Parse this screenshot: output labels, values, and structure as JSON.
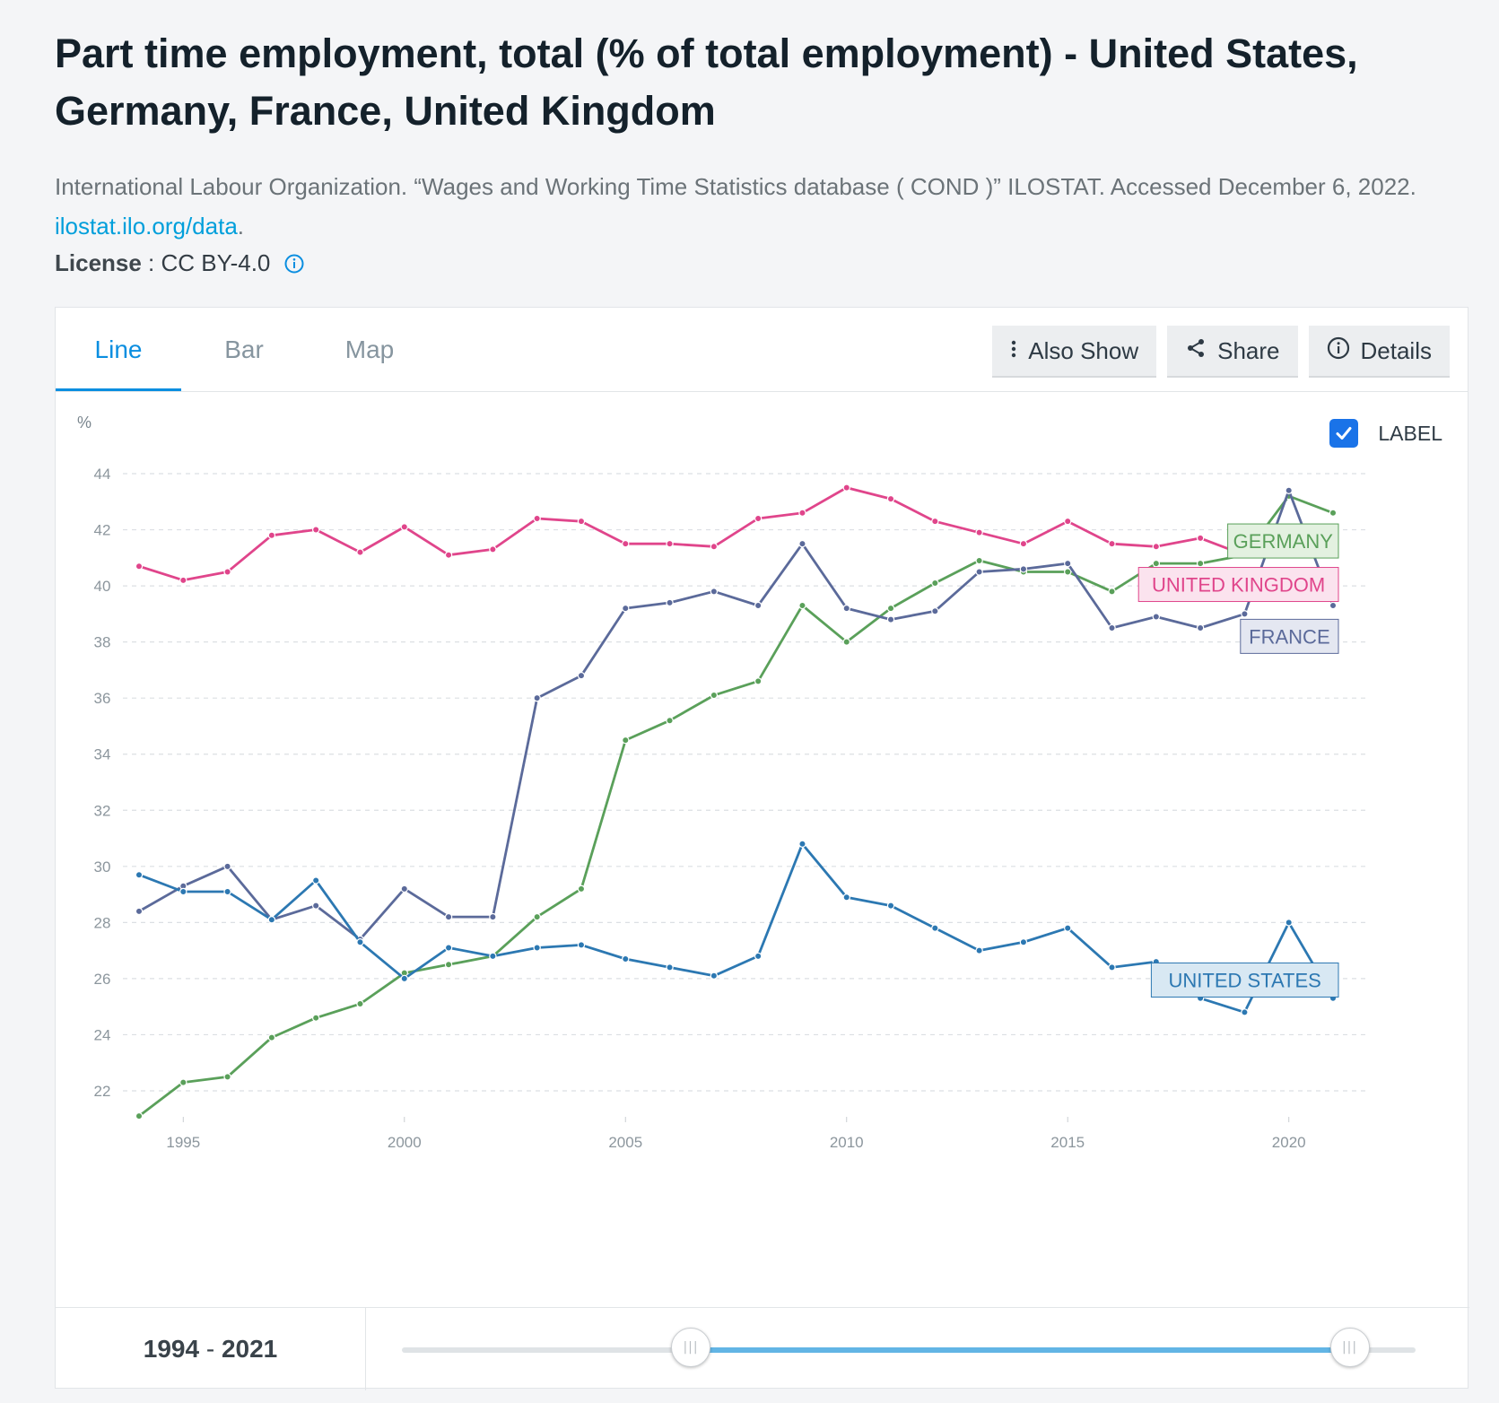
{
  "page": {
    "title": "Part time employment, total (% of total employment) - United States, Germany, France, United Kingdom",
    "source_text": "International Labour Organization. “Wages and Working Time Statistics database ( COND )” ILOSTAT. Accessed December 6, 2022.",
    "source_link": "ilostat.ilo.org/data",
    "source_link_suffix": ".",
    "license_label": "License",
    "license_sep": " : ",
    "license_value": "CC BY-4.0"
  },
  "tabs": [
    {
      "label": "Line",
      "active": true
    },
    {
      "label": "Bar",
      "active": false
    },
    {
      "label": "Map",
      "active": false
    }
  ],
  "actions": {
    "also_show": "Also Show",
    "share": "Share",
    "details": "Details"
  },
  "label_toggle": {
    "text": "LABEL",
    "checked": true
  },
  "range": {
    "start": "1994",
    "sep": " - ",
    "end": "2021",
    "slider_start_fraction": 0.285,
    "slider_end_fraction": 0.935
  },
  "colors": {
    "accent": "#0a8ee0",
    "slider_fill": "#62b5e5"
  },
  "chart_data": {
    "type": "line",
    "unit": "%",
    "ylim": [
      21,
      44.5
    ],
    "yticks": [
      22,
      24,
      26,
      28,
      30,
      32,
      34,
      36,
      38,
      40,
      42,
      44
    ],
    "xlim": [
      1994,
      2021
    ],
    "xticks": [
      1995,
      2000,
      2005,
      2010,
      2015,
      2020
    ],
    "grid": true,
    "x": [
      1994,
      1995,
      1996,
      1997,
      1998,
      1999,
      2000,
      2001,
      2002,
      2003,
      2004,
      2005,
      2006,
      2007,
      2008,
      2009,
      2010,
      2011,
      2012,
      2013,
      2014,
      2015,
      2016,
      2017,
      2018,
      2019,
      2020,
      2021
    ],
    "series": [
      {
        "name": "UNITED KINGDOM",
        "color": "#e0458b",
        "label_bg": "#fbe3ee",
        "values": [
          40.7,
          40.2,
          40.5,
          41.8,
          42.0,
          41.2,
          42.1,
          41.1,
          41.3,
          42.4,
          42.3,
          41.5,
          41.5,
          41.4,
          42.4,
          42.6,
          43.5,
          43.1,
          42.3,
          41.9,
          41.5,
          42.3,
          41.5,
          41.4,
          41.7,
          41.1,
          null,
          null
        ]
      },
      {
        "name": "GERMANY",
        "color": "#5aa05a",
        "label_bg": "#e3f1e0",
        "values": [
          21.1,
          22.3,
          22.5,
          23.9,
          24.6,
          25.1,
          26.2,
          26.5,
          26.8,
          28.2,
          29.2,
          34.5,
          35.2,
          36.1,
          36.6,
          39.3,
          38.0,
          39.2,
          40.1,
          40.9,
          40.5,
          40.5,
          39.8,
          40.8,
          40.8,
          41.1,
          43.2,
          42.6
        ]
      },
      {
        "name": "FRANCE",
        "color": "#5b6a9a",
        "label_bg": "#e4e7f1",
        "values": [
          28.4,
          29.3,
          30.0,
          28.1,
          28.6,
          27.4,
          29.2,
          28.2,
          28.2,
          36.0,
          36.8,
          39.2,
          39.4,
          39.8,
          39.3,
          41.5,
          39.2,
          38.8,
          39.1,
          40.5,
          40.6,
          40.8,
          38.5,
          38.9,
          38.5,
          39.0,
          43.4,
          39.3
        ]
      },
      {
        "name": "UNITED STATES",
        "color": "#2c78b2",
        "label_bg": "#d8e8f3",
        "values": [
          29.7,
          29.1,
          29.1,
          28.1,
          29.5,
          27.3,
          26.0,
          27.1,
          26.8,
          27.1,
          27.2,
          26.7,
          26.4,
          26.1,
          26.8,
          30.8,
          28.9,
          28.6,
          27.8,
          27.0,
          27.3,
          27.8,
          26.4,
          26.6,
          25.3,
          24.8,
          28.0,
          25.3
        ]
      }
    ]
  }
}
